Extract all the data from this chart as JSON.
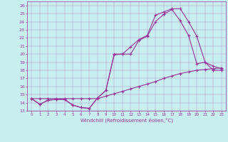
{
  "xlabel": "Windchill (Refroidissement éolien,°C)",
  "xlim": [
    -0.5,
    23.5
  ],
  "ylim": [
    13,
    26.5
  ],
  "xticks": [
    0,
    1,
    2,
    3,
    4,
    5,
    6,
    7,
    8,
    9,
    10,
    11,
    12,
    13,
    14,
    15,
    16,
    17,
    18,
    19,
    20,
    21,
    22,
    23
  ],
  "yticks": [
    13,
    14,
    15,
    16,
    17,
    18,
    19,
    20,
    21,
    22,
    23,
    24,
    25,
    26
  ],
  "bg_color": "#c8eef0",
  "line_color": "#993399",
  "line1_x": [
    0,
    1,
    2,
    3,
    4,
    5,
    6,
    7,
    8,
    9,
    10,
    11,
    12,
    13,
    14,
    15,
    16,
    17,
    18,
    19,
    20,
    21,
    22,
    23
  ],
  "line1_y": [
    14.5,
    13.8,
    14.3,
    14.4,
    14.4,
    13.7,
    13.4,
    13.3,
    14.6,
    15.5,
    20.0,
    20.0,
    20.9,
    21.8,
    22.3,
    24.8,
    25.2,
    25.6,
    25.6,
    24.0,
    22.2,
    19.0,
    18.5,
    18.2
  ],
  "line2_x": [
    0,
    1,
    2,
    3,
    4,
    5,
    6,
    7,
    8,
    9,
    10,
    11,
    12,
    13,
    14,
    15,
    16,
    17,
    18,
    19,
    20,
    21,
    22,
    23
  ],
  "line2_y": [
    14.5,
    13.8,
    14.3,
    14.4,
    14.4,
    13.7,
    13.4,
    13.3,
    14.6,
    15.5,
    19.9,
    20.0,
    20.0,
    21.7,
    22.2,
    24.0,
    24.9,
    25.5,
    24.1,
    22.3,
    18.8,
    19.0,
    18.0,
    18.0
  ],
  "line3_x": [
    0,
    1,
    2,
    3,
    4,
    5,
    6,
    7,
    8,
    9,
    10,
    11,
    12,
    13,
    14,
    15,
    16,
    17,
    18,
    19,
    20,
    21,
    22,
    23
  ],
  "line3_y": [
    14.5,
    14.5,
    14.5,
    14.5,
    14.5,
    14.5,
    14.5,
    14.5,
    14.5,
    14.8,
    15.1,
    15.4,
    15.7,
    16.0,
    16.3,
    16.6,
    17.0,
    17.3,
    17.6,
    17.8,
    18.0,
    18.1,
    18.2,
    18.3
  ]
}
